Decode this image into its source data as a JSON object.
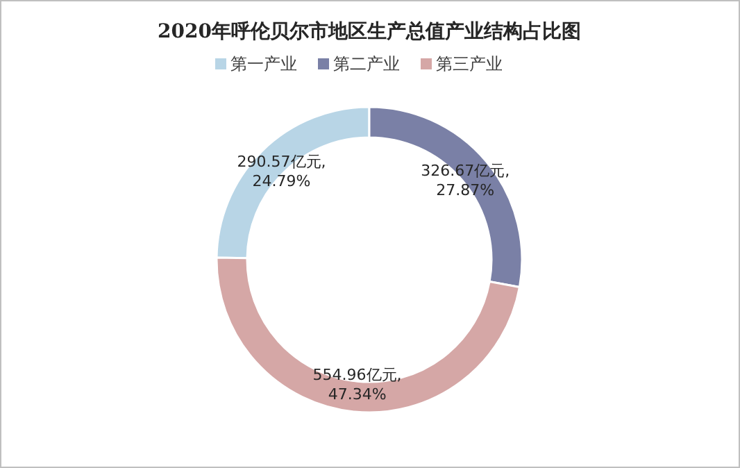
{
  "chart_data": {
    "type": "donut",
    "title": "2020年呼伦贝尔市地区生产总值产业结构占比图",
    "categories": [
      "第一产业",
      "第二产业",
      "第三产业"
    ],
    "values": [
      290.57,
      326.67,
      554.96
    ],
    "colors": [
      "#b8d5e6",
      "#7a80a6",
      "#d5a7a6"
    ],
    "value_labels": [
      "290.57亿元, 24.79%",
      "326.67亿元, 27.87%",
      "554.96亿元, 47.34%"
    ],
    "legend": "top"
  }
}
